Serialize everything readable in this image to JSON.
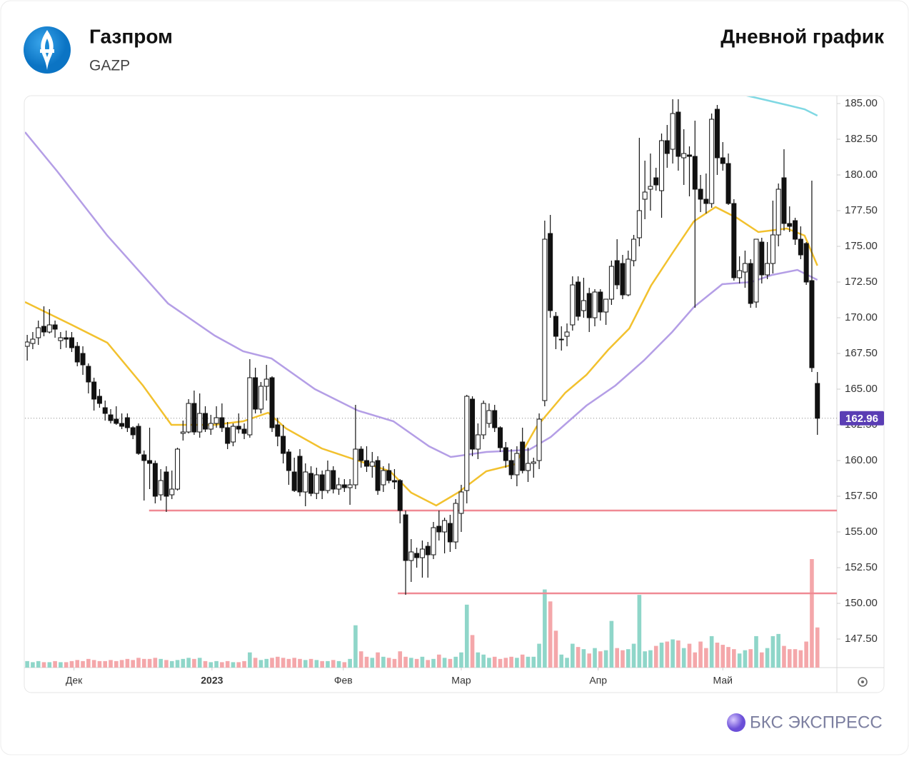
{
  "header": {
    "title": "Газпром",
    "ticker": "GAZP",
    "chart_label": "Дневной график"
  },
  "footer": {
    "brand": "БКС ЭКСПРЕСС"
  },
  "chart_data": {
    "type": "candlestick",
    "up_color": "#ffffff",
    "down_color": "#111111",
    "up_volume_color": "#8fd6c9",
    "down_volume_color": "#f4a7aa",
    "xlim": [
      -0.4,
      145.5
    ],
    "ylim": [
      145.5,
      185.5
    ],
    "xticks": [
      {
        "value": 8.4,
        "label": "Дек"
      },
      {
        "value": 33.2,
        "label": "2023"
      },
      {
        "value": 56.8,
        "label": "Фев"
      },
      {
        "value": 78,
        "label": "Мар"
      },
      {
        "value": 102.6,
        "label": "Апр"
      },
      {
        "value": 125,
        "label": "Май"
      }
    ],
    "yticks": [
      {
        "value": 147.5,
        "label": "147.50"
      },
      {
        "value": 150,
        "label": "150.00"
      },
      {
        "value": 152.5,
        "label": "152.50"
      },
      {
        "value": 155,
        "label": "155.00"
      },
      {
        "value": 157.5,
        "label": "157.50"
      },
      {
        "value": 160,
        "label": "160.00"
      },
      {
        "value": 162.5,
        "label": "162.50"
      },
      {
        "value": 165,
        "label": "165.00"
      },
      {
        "value": 167.5,
        "label": "167.50"
      },
      {
        "value": 170,
        "label": "170.00"
      },
      {
        "value": 172.5,
        "label": "172.50"
      },
      {
        "value": 175,
        "label": "175.00"
      },
      {
        "value": 177.5,
        "label": "177.50"
      },
      {
        "value": 180,
        "label": "180.00"
      },
      {
        "value": 182.5,
        "label": "182.50"
      },
      {
        "value": 185,
        "label": "185.00"
      }
    ],
    "last_price": 162.96,
    "levels": [
      {
        "value": 156.5,
        "from": 21.9,
        "color": "#f08a94"
      },
      {
        "value": 150.7,
        "from": 66.6,
        "color": "#f08a94"
      }
    ],
    "ohlc": [
      [
        168.0,
        168.8,
        167.0,
        168.3
      ],
      [
        168.2,
        169.0,
        167.8,
        168.5
      ],
      [
        168.6,
        169.8,
        168.1,
        169.3
      ],
      [
        169.4,
        170.8,
        168.7,
        169.0
      ],
      [
        169.0,
        170.6,
        168.9,
        169.5
      ],
      [
        169.5,
        169.8,
        168.6,
        169.2
      ],
      [
        168.4,
        169.0,
        167.8,
        168.6
      ],
      [
        168.6,
        169.1,
        167.9,
        168.5
      ],
      [
        168.6,
        169.0,
        167.6,
        167.9
      ],
      [
        168.0,
        168.3,
        166.6,
        166.9
      ],
      [
        167.5,
        168.0,
        166.0,
        166.7
      ],
      [
        166.6,
        166.8,
        164.7,
        165.5
      ],
      [
        165.5,
        165.8,
        163.5,
        164.3
      ],
      [
        164.5,
        165.0,
        163.7,
        164.0
      ],
      [
        163.7,
        164.2,
        162.8,
        163.3
      ],
      [
        163.2,
        163.6,
        162.6,
        162.8
      ],
      [
        162.9,
        163.8,
        162.5,
        162.6
      ],
      [
        162.6,
        163.3,
        162.2,
        162.4
      ],
      [
        163.0,
        163.3,
        162.0,
        162.3
      ],
      [
        162.3,
        162.4,
        161.5,
        161.8
      ],
      [
        162.4,
        162.6,
        160.4,
        160.5
      ],
      [
        160.4,
        160.7,
        157.2,
        160.0
      ],
      [
        160.0,
        162.3,
        158.0,
        159.8
      ],
      [
        159.8,
        160.0,
        157.0,
        157.5
      ],
      [
        157.6,
        159.4,
        157.2,
        158.6
      ],
      [
        159.2,
        159.6,
        156.4,
        157.5
      ],
      [
        157.6,
        159.3,
        157.3,
        158.0
      ],
      [
        158.0,
        160.9,
        157.9,
        160.8
      ],
      [
        161.9,
        162.8,
        161.4,
        162.0
      ],
      [
        162.0,
        164.3,
        161.9,
        164.0
      ],
      [
        164.0,
        164.9,
        161.8,
        162.0
      ],
      [
        162.0,
        164.7,
        161.6,
        163.3
      ],
      [
        163.3,
        163.8,
        162.0,
        162.2
      ],
      [
        162.2,
        163.2,
        161.8,
        162.6
      ],
      [
        162.6,
        163.8,
        162.3,
        163.0
      ],
      [
        163.0,
        164.0,
        162.0,
        162.3
      ],
      [
        162.3,
        162.7,
        160.8,
        161.2
      ],
      [
        161.3,
        162.6,
        161.0,
        162.4
      ],
      [
        162.4,
        163.3,
        161.9,
        162.2
      ],
      [
        162.2,
        162.6,
        161.5,
        161.9
      ],
      [
        161.8,
        167.1,
        161.6,
        165.8
      ],
      [
        165.8,
        166.5,
        163.3,
        163.6
      ],
      [
        163.6,
        165.5,
        163.3,
        165.2
      ],
      [
        165.2,
        166.7,
        164.2,
        165.7
      ],
      [
        165.8,
        165.9,
        162.0,
        162.3
      ],
      [
        162.5,
        163.0,
        161.0,
        161.7
      ],
      [
        161.7,
        162.5,
        159.8,
        160.5
      ],
      [
        160.6,
        160.8,
        158.3,
        159.3
      ],
      [
        159.2,
        160.2,
        157.8,
        157.9
      ],
      [
        160.3,
        160.8,
        157.5,
        157.8
      ],
      [
        157.8,
        159.8,
        156.8,
        159.2
      ],
      [
        159.1,
        159.6,
        157.5,
        157.7
      ],
      [
        157.7,
        159.5,
        157.3,
        159.0
      ],
      [
        159.0,
        159.3,
        157.3,
        157.9
      ],
      [
        157.9,
        160.0,
        157.7,
        159.3
      ],
      [
        159.3,
        159.6,
        157.7,
        158.0
      ],
      [
        158.0,
        158.8,
        157.6,
        158.3
      ],
      [
        158.3,
        158.7,
        157.8,
        158.1
      ],
      [
        158.1,
        158.7,
        156.9,
        158.3
      ],
      [
        158.3,
        163.9,
        158.0,
        160.8
      ],
      [
        160.8,
        161.0,
        159.5,
        160.0
      ],
      [
        160.0,
        161.0,
        159.2,
        159.6
      ],
      [
        159.6,
        160.6,
        158.8,
        159.9
      ],
      [
        160.0,
        160.3,
        157.6,
        157.9
      ],
      [
        158.3,
        159.6,
        157.8,
        159.3
      ],
      [
        159.3,
        159.8,
        158.4,
        158.6
      ],
      [
        158.6,
        159.4,
        158.0,
        158.5
      ],
      [
        158.6,
        158.7,
        155.6,
        156.5
      ],
      [
        156.2,
        156.5,
        150.6,
        153.0
      ],
      [
        153.0,
        154.5,
        151.5,
        153.6
      ],
      [
        153.5,
        153.9,
        152.5,
        153.2
      ],
      [
        153.2,
        154.4,
        151.8,
        153.8
      ],
      [
        154.0,
        154.3,
        151.8,
        153.4
      ],
      [
        153.4,
        155.7,
        153.1,
        155.3
      ],
      [
        155.4,
        156.5,
        154.4,
        155.0
      ],
      [
        155.0,
        156.0,
        153.5,
        155.8
      ],
      [
        155.6,
        156.2,
        153.6,
        154.3
      ],
      [
        154.3,
        157.3,
        153.8,
        157.0
      ],
      [
        156.3,
        158.3,
        155.0,
        157.8
      ],
      [
        157.9,
        164.6,
        157.0,
        164.5
      ],
      [
        164.3,
        164.5,
        160.3,
        160.8
      ],
      [
        160.8,
        162.6,
        160.1,
        161.8
      ],
      [
        161.8,
        164.2,
        161.5,
        164.0
      ],
      [
        162.6,
        164.0,
        162.3,
        163.5
      ],
      [
        163.5,
        163.9,
        162.0,
        162.3
      ],
      [
        162.3,
        162.4,
        160.6,
        160.9
      ],
      [
        160.9,
        161.3,
        159.5,
        160.0
      ],
      [
        160.0,
        160.8,
        158.7,
        159.0
      ],
      [
        159.0,
        161.0,
        158.2,
        160.5
      ],
      [
        161.3,
        162.3,
        159.1,
        159.3
      ],
      [
        159.3,
        160.9,
        158.5,
        159.8
      ],
      [
        159.8,
        160.2,
        158.8,
        159.9
      ],
      [
        160.0,
        163.3,
        159.4,
        162.9
      ],
      [
        164.2,
        176.8,
        163.8,
        175.5
      ],
      [
        175.9,
        177.2,
        170.0,
        170.5
      ],
      [
        170.1,
        170.4,
        167.8,
        168.7
      ],
      [
        168.5,
        169.4,
        167.7,
        168.5
      ],
      [
        168.7,
        169.6,
        168.0,
        169.0
      ],
      [
        169.5,
        172.9,
        169.1,
        172.3
      ],
      [
        172.5,
        172.9,
        169.8,
        170.1
      ],
      [
        170.5,
        172.8,
        170.0,
        171.2
      ],
      [
        171.7,
        172.1,
        169.0,
        170.0
      ],
      [
        170.0,
        172.0,
        169.4,
        171.8
      ],
      [
        171.8,
        172.0,
        169.8,
        170.4
      ],
      [
        170.4,
        171.3,
        169.5,
        171.3
      ],
      [
        171.3,
        174.0,
        170.9,
        173.6
      ],
      [
        174.0,
        175.5,
        172.0,
        172.3
      ],
      [
        173.8,
        174.4,
        171.3,
        171.6
      ],
      [
        171.6,
        174.7,
        171.5,
        174.1
      ],
      [
        174.0,
        175.8,
        173.6,
        175.5
      ],
      [
        175.6,
        182.6,
        175.0,
        177.5
      ],
      [
        178.3,
        181.0,
        176.9,
        178.8
      ],
      [
        179.0,
        181.5,
        177.5,
        179.2
      ],
      [
        179.8,
        180.5,
        178.9,
        179.3
      ],
      [
        178.9,
        182.9,
        177.0,
        182.4
      ],
      [
        182.4,
        183.5,
        180.5,
        181.5
      ],
      [
        181.8,
        185.3,
        180.8,
        184.3
      ],
      [
        184.4,
        185.3,
        180.3,
        181.3
      ],
      [
        181.2,
        183.2,
        179.3,
        181.5
      ],
      [
        181.4,
        182.0,
        178.5,
        181.3
      ],
      [
        181.3,
        183.8,
        170.7,
        179.0
      ],
      [
        179.0,
        180.0,
        177.4,
        178.3
      ],
      [
        178.3,
        180.1,
        177.3,
        178.0
      ],
      [
        178.0,
        184.3,
        177.7,
        183.9
      ],
      [
        184.6,
        184.9,
        180.0,
        181.2
      ],
      [
        181.2,
        182.3,
        180.3,
        180.8
      ],
      [
        180.8,
        181.5,
        177.9,
        178.0
      ],
      [
        178.0,
        178.3,
        172.6,
        172.8
      ],
      [
        172.8,
        174.3,
        172.4,
        173.3
      ],
      [
        173.2,
        174.7,
        172.1,
        173.8
      ],
      [
        173.8,
        174.1,
        170.7,
        171.0
      ],
      [
        171.1,
        175.5,
        170.7,
        175.5
      ],
      [
        175.3,
        175.6,
        172.4,
        173.0
      ],
      [
        173.0,
        175.3,
        172.7,
        173.8
      ],
      [
        173.8,
        178.2,
        173.1,
        175.8
      ],
      [
        175.8,
        179.4,
        175.0,
        179.0
      ],
      [
        179.8,
        181.8,
        176.1,
        176.6
      ],
      [
        176.6,
        177.8,
        176.0,
        176.4
      ],
      [
        176.8,
        177.0,
        175.1,
        175.5
      ],
      [
        175.5,
        176.4,
        174.1,
        174.4
      ],
      [
        175.2,
        175.3,
        172.3,
        172.5
      ],
      [
        172.6,
        179.6,
        166.2,
        166.5
      ],
      [
        165.4,
        166.2,
        161.8,
        162.96
      ]
    ],
    "volume": [
      6,
      5,
      6,
      5,
      5,
      6,
      5,
      5,
      6,
      7,
      6,
      8,
      7,
      6,
      6,
      7,
      6,
      7,
      8,
      7,
      9,
      8,
      8,
      9,
      8,
      7,
      6,
      7,
      8,
      9,
      8,
      9,
      6,
      5,
      6,
      5,
      6,
      5,
      5,
      6,
      14,
      9,
      7,
      8,
      9,
      10,
      9,
      8,
      9,
      8,
      7,
      8,
      7,
      6,
      6,
      7,
      6,
      5,
      8,
      39,
      15,
      10,
      9,
      14,
      10,
      9,
      8,
      15,
      10,
      9,
      8,
      10,
      7,
      8,
      12,
      9,
      8,
      10,
      14,
      58,
      30,
      14,
      12,
      9,
      10,
      8,
      9,
      10,
      9,
      12,
      10,
      10,
      22,
      72,
      61,
      34,
      12,
      9,
      22,
      19,
      17,
      13,
      18,
      15,
      16,
      43,
      18,
      16,
      17,
      22,
      67,
      15,
      16,
      20,
      23,
      24,
      26,
      25,
      18,
      22,
      14,
      24,
      18,
      29,
      23,
      21,
      19,
      17,
      13,
      16,
      17,
      29,
      14,
      18,
      29,
      31,
      20,
      17,
      17,
      16,
      24,
      100,
      37
    ],
    "lines": [
      {
        "color": "#f2c12e",
        "x": [
          -0.4,
          8,
          14.4,
          20.8,
          25.9,
          33.7,
          38.8,
          43.3,
          46.5,
          52.9,
          59.4,
          65.2,
          69,
          73.5,
          77.4,
          82.5,
          87.7,
          91.5,
          96.7,
          100.5,
          104.4,
          108.2,
          112.1,
          115.9,
          119.8,
          123.7,
          127.5,
          131.4,
          136.5,
          139.7,
          142
        ],
        "values": [
          171.1,
          169.5,
          168.25,
          165.25,
          162.5,
          162.5,
          162.75,
          163.35,
          162.25,
          160.85,
          160.0,
          159.25,
          157.75,
          156.85,
          157.75,
          159.25,
          159.75,
          162.35,
          164.75,
          166.0,
          167.75,
          169.25,
          172.25,
          174.5,
          176.75,
          177.75,
          177.0,
          176.0,
          176.25,
          175.75,
          173.65
        ]
      },
      {
        "color": "#b49ee6",
        "x": [
          -0.4,
          5.4,
          14.4,
          25.3,
          33.7,
          38.8,
          43.9,
          51.7,
          59.4,
          65.8,
          72.2,
          76.1,
          82.5,
          90.2,
          94.1,
          100.5,
          105.7,
          110.8,
          115.9,
          119.8,
          124.9,
          130.1,
          133.9,
          138.4,
          142
        ],
        "values": [
          183,
          180.25,
          175.75,
          171.0,
          168.75,
          167.65,
          167.15,
          165.0,
          163.5,
          162.75,
          161.0,
          160.25,
          160.6,
          160.75,
          161.65,
          163.85,
          165.25,
          167.0,
          169.0,
          170.75,
          172.35,
          172.5,
          173.0,
          173.35,
          172.65
        ]
      },
      {
        "color": "#7fd8e3",
        "x": [
          128.8,
          132.7,
          136.5,
          139.7,
          142
        ],
        "values": [
          185.6,
          185.25,
          184.9,
          184.6,
          184.15
        ]
      }
    ]
  }
}
